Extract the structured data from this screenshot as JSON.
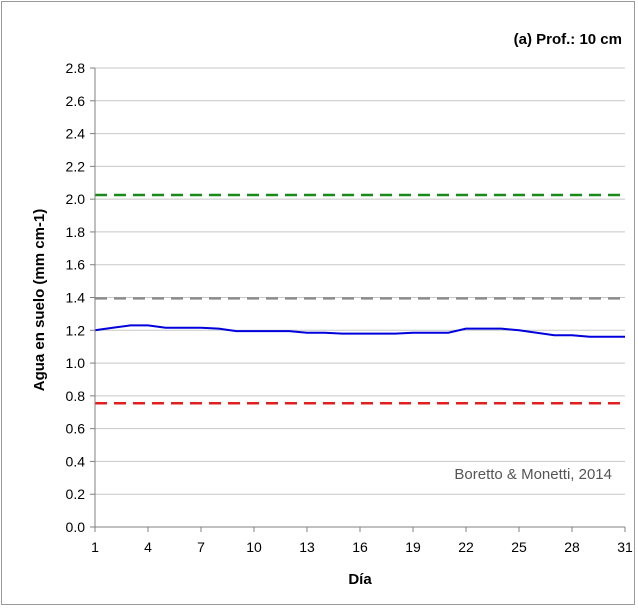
{
  "chart_data": {
    "type": "line",
    "title": "(a) Prof.: 10 cm",
    "xlabel": "Día",
    "ylabel": "Agua en suelo (mm cm-1)",
    "annotation": "Boretto & Monetti, 2014",
    "xlim": [
      1,
      31
    ],
    "ylim": [
      0.0,
      2.8
    ],
    "x_ticks": [
      1,
      4,
      7,
      10,
      13,
      16,
      19,
      22,
      25,
      28,
      31
    ],
    "y_ticks": [
      "0.0",
      "0.2",
      "0.4",
      "0.6",
      "0.8",
      "1.0",
      "1.2",
      "1.4",
      "1.6",
      "1.8",
      "2.0",
      "2.2",
      "2.4",
      "2.6",
      "2.8"
    ],
    "grid": "horizontal",
    "series": [
      {
        "color": "#0000dd",
        "style": "solid",
        "x": [
          1,
          2,
          3,
          4,
          5,
          6,
          7,
          8,
          9,
          10,
          11,
          12,
          13,
          14,
          15,
          16,
          17,
          18,
          19,
          20,
          21,
          22,
          23,
          24,
          25,
          26,
          27,
          28,
          29,
          30,
          31
        ],
        "values": [
          1.2,
          1.215,
          1.23,
          1.23,
          1.215,
          1.215,
          1.215,
          1.21,
          1.195,
          1.195,
          1.195,
          1.195,
          1.185,
          1.185,
          1.18,
          1.18,
          1.18,
          1.18,
          1.185,
          1.185,
          1.185,
          1.21,
          1.21,
          1.21,
          1.2,
          1.185,
          1.17,
          1.17,
          1.16,
          1.16,
          1.16
        ]
      }
    ],
    "reference_lines": [
      {
        "y": 2.025,
        "color": "#1a8a1a",
        "style": "dashed"
      },
      {
        "y": 1.395,
        "color": "#8c8c8c",
        "style": "dashed"
      },
      {
        "y": 0.755,
        "color": "#e02020",
        "style": "dashed"
      }
    ]
  }
}
